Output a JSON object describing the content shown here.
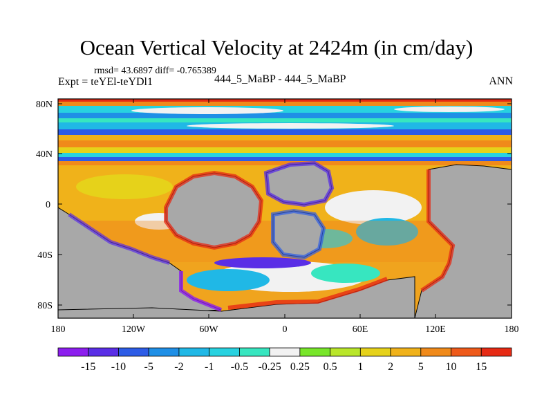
{
  "title": "Ocean Vertical Velocity at 2424m (in cm/day)",
  "stats": "rmsd= 43.6897 diff= -0.765389",
  "experiment": "Expt = teYEl-teYDl1",
  "case_label": "444_5_MaBP - 444_5_MaBP",
  "season": "ANN",
  "y_axis_labels": [
    "80N",
    "40N",
    "0",
    "40S",
    "80S"
  ],
  "x_axis_labels": [
    "180",
    "120W",
    "60W",
    "0",
    "60E",
    "120E",
    "180"
  ],
  "colorbar": {
    "colors": [
      "#8c1eee",
      "#5a2ee6",
      "#2d5ce6",
      "#1f8fe6",
      "#20b8e6",
      "#28d2e0",
      "#37e6c0",
      "#f2f2f2",
      "#78e62a",
      "#b9e62a",
      "#e6d21a",
      "#f0b21a",
      "#f08a1a",
      "#ee5a1a",
      "#e62a14"
    ],
    "labels": [
      "-15",
      "-10",
      "-5",
      "-2",
      "-1",
      "-0.5",
      "-0.25",
      "0.25",
      "0.5",
      "1",
      "2",
      "5",
      "10",
      "15"
    ]
  },
  "land_color": "#a8a8a8"
}
